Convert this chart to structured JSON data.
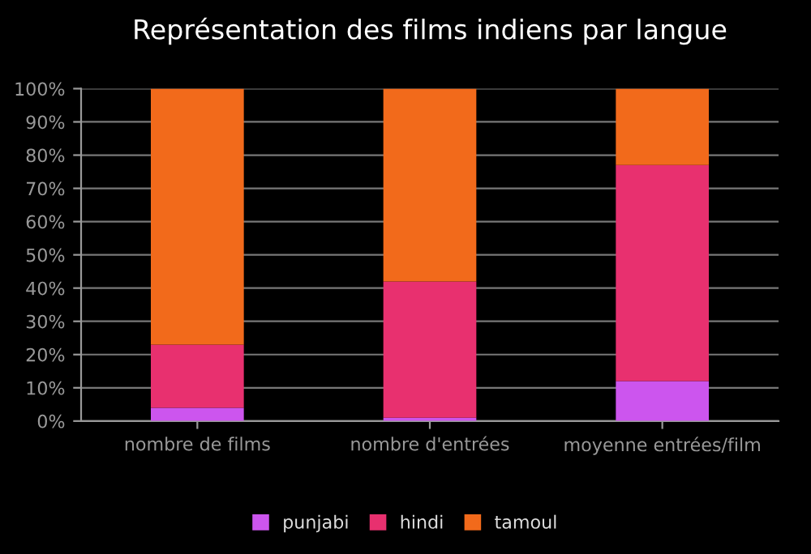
{
  "chart_data": {
    "type": "bar",
    "title": "Représentation des films indiens par langue",
    "categories": [
      "nombre de films",
      "nombre d'entrées",
      "moyenne entrées/film"
    ],
    "stacked": true,
    "series": [
      {
        "name": "punjabi",
        "color": "#cc55ee",
        "values": [
          4,
          1,
          12
        ]
      },
      {
        "name": "hindi",
        "color": "#e8306f",
        "values": [
          19,
          41,
          65
        ]
      },
      {
        "name": "tamoul",
        "color": "#f26a1b",
        "values": [
          77,
          58,
          23
        ]
      }
    ],
    "ylim": [
      0,
      100
    ],
    "yticks": [
      {
        "value": 0,
        "label": "0%"
      },
      {
        "value": 10,
        "label": "10%"
      },
      {
        "value": 20,
        "label": "20%"
      },
      {
        "value": 30,
        "label": "30%"
      },
      {
        "value": 40,
        "label": "40%"
      },
      {
        "value": 50,
        "label": "50%"
      },
      {
        "value": 60,
        "label": "60%"
      },
      {
        "value": 70,
        "label": "70%"
      },
      {
        "value": 80,
        "label": "80%"
      },
      {
        "value": 90,
        "label": "90%"
      },
      {
        "value": 100,
        "label": "100%"
      }
    ],
    "grid": "y",
    "legend": "bottom"
  }
}
